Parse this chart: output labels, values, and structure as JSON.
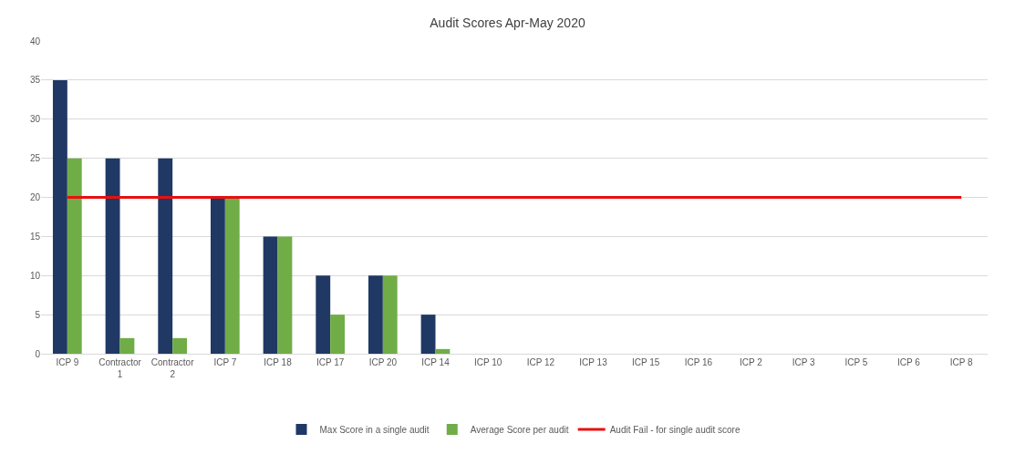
{
  "chart_data": {
    "type": "bar",
    "title": "Audit Scores Apr-May 2020",
    "categories": [
      "ICP 9",
      "Contractor 1",
      "Contractor 2",
      "ICP 7",
      "ICP 18",
      "ICP 17",
      "ICP 20",
      "ICP 14",
      "ICP 10",
      "ICP 12",
      "ICP 13",
      "ICP 15",
      "ICP 16",
      "ICP 2",
      "ICP 3",
      "ICP 5",
      "ICP 6",
      "ICP 8"
    ],
    "series": [
      {
        "name": "Max Score in a single audit",
        "color": "#203864",
        "values": [
          35,
          25,
          25,
          20,
          15,
          10,
          10,
          5,
          0,
          0,
          0,
          0,
          0,
          0,
          0,
          0,
          0,
          0
        ]
      },
      {
        "name": "Average Score per audit",
        "color": "#70ad47",
        "values": [
          25,
          2,
          2,
          20,
          15,
          5,
          10,
          0.6,
          0,
          0,
          0,
          0,
          0,
          0,
          0,
          0,
          0,
          0
        ]
      },
      {
        "name": "Audit Fail - for single audit score",
        "type": "line",
        "color": "#e81010",
        "values": [
          20,
          20,
          20,
          20,
          20,
          20,
          20,
          20,
          20,
          20,
          20,
          20,
          20,
          20,
          20,
          20,
          20,
          20
        ]
      }
    ],
    "ylim": [
      0,
      40
    ],
    "yticks": [
      0,
      5,
      10,
      15,
      20,
      25,
      30,
      35,
      40
    ],
    "grid": "y",
    "legend": "bottom"
  }
}
